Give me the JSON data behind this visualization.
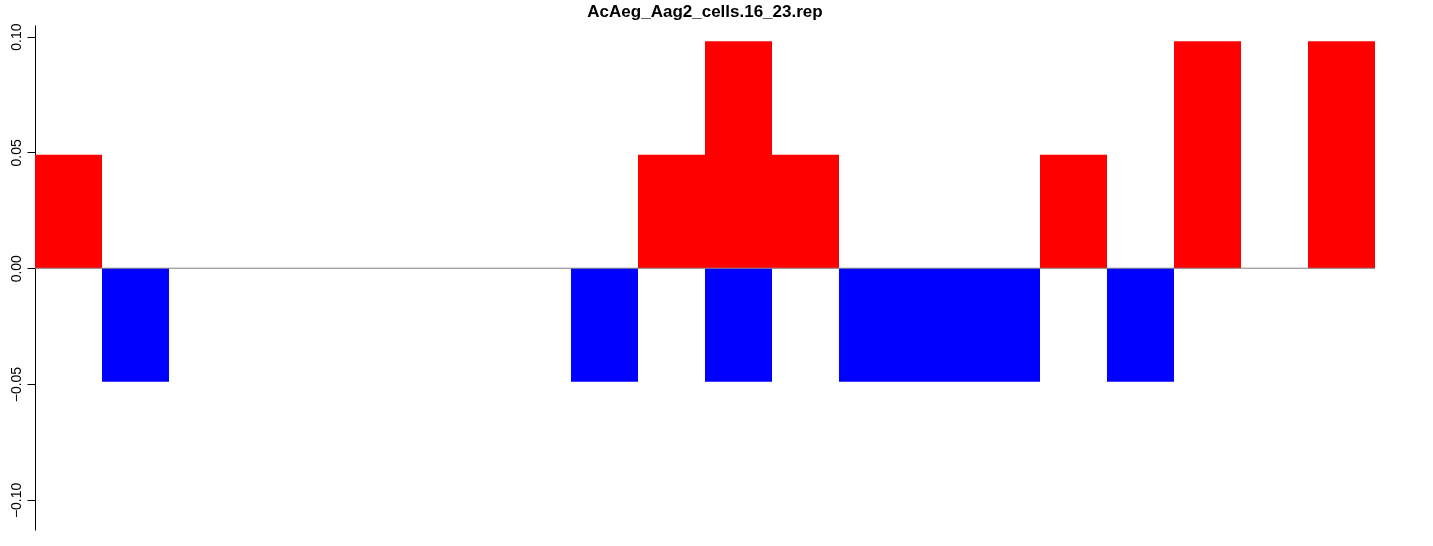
{
  "chart_data": {
    "type": "bar",
    "title": "AcAeg_Aag2_cells.16_23.rep",
    "categories": [
      null,
      null,
      null,
      null,
      null,
      null,
      null,
      null,
      null,
      null,
      null,
      null,
      null,
      null,
      null,
      null,
      null,
      null,
      null,
      null
    ],
    "series": [
      {
        "color": "#ff0000",
        "values": [
          0.049,
          null,
          null,
          null,
          null,
          null,
          null,
          null,
          null,
          0.049,
          0.098,
          0.049,
          null,
          null,
          null,
          0.049,
          null,
          0.098,
          null,
          0.098
        ]
      },
      {
        "color": "#0000ff",
        "values": [
          null,
          -0.049,
          null,
          null,
          null,
          null,
          null,
          null,
          -0.049,
          null,
          -0.049,
          null,
          -0.049,
          -0.049,
          -0.049,
          null,
          -0.049,
          null,
          null,
          null
        ]
      }
    ],
    "ylim": [
      -0.113,
      0.105
    ],
    "yticks": [
      {
        "value": -0.1,
        "label": "−0.10"
      },
      {
        "value": -0.05,
        "label": "−0.05"
      },
      {
        "value": 0,
        "label": "0.00"
      },
      {
        "value": 0.05,
        "label": "0.05"
      },
      {
        "value": 0.1,
        "label": "0.10"
      }
    ],
    "ref_lines": [
      {
        "axis": "y",
        "value": 0,
        "color": "#808080"
      }
    ],
    "tick_labels": "y"
  }
}
